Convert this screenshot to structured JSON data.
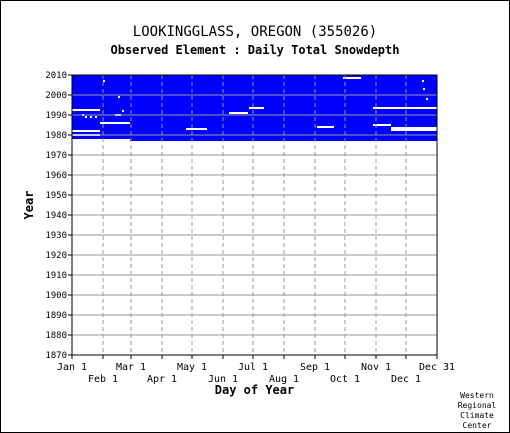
{
  "title": "LOOKINGGLASS, OREGON   (355026)",
  "subtitle": "Observed Element : Daily Total Snowdepth",
  "credit": [
    "Western",
    "Regional",
    "Climate",
    "Center"
  ],
  "colors": {
    "data": "#0000ff",
    "grid": "#999999",
    "axis": "#000000",
    "gap": "#ffffff"
  },
  "chart_data": {
    "type": "heatmap",
    "xlabel": "Day of Year",
    "ylabel": "Year",
    "xlim": [
      1,
      366
    ],
    "ylim": [
      1870,
      2010
    ],
    "y_ticks": [
      1870,
      1880,
      1890,
      1900,
      1910,
      1920,
      1930,
      1940,
      1950,
      1960,
      1970,
      1980,
      1990,
      2000,
      2010
    ],
    "x_ticks_top": [
      {
        "label": "Jan 1",
        "day": 1
      },
      {
        "label": "Mar 1",
        "day": 60
      },
      {
        "label": "May 1",
        "day": 121
      },
      {
        "label": "Jul 1",
        "day": 182
      },
      {
        "label": "Sep 1",
        "day": 244
      },
      {
        "label": "Nov 1",
        "day": 305
      },
      {
        "label": "Dec 31",
        "day": 366
      }
    ],
    "x_ticks_bottom": [
      {
        "label": "Feb 1",
        "day": 32
      },
      {
        "label": "Apr 1",
        "day": 91
      },
      {
        "label": "Jun 1",
        "day": 152
      },
      {
        "label": "Aug 1",
        "day": 213
      },
      {
        "label": "Oct 1",
        "day": 274
      },
      {
        "label": "Dec 1",
        "day": 335
      }
    ],
    "grid": true,
    "data_blocks": [
      {
        "name": "early-record",
        "day_start": 1,
        "day_end": 59,
        "year_start": 1978,
        "year_end": 2010
      },
      {
        "name": "full-record",
        "day_start": 59,
        "day_end": 366,
        "year_start": 1977,
        "year_end": 2010
      }
    ],
    "missing_gaps": [
      {
        "day_start": 1,
        "day_end": 29,
        "year": 1992.5
      },
      {
        "day_start": 1,
        "day_end": 29,
        "year": 1982
      },
      {
        "day_start": 1,
        "day_end": 29,
        "year": 1980
      },
      {
        "day_start": 29,
        "day_end": 59,
        "year": 1986
      },
      {
        "day_start": 115,
        "day_end": 136,
        "year": 1983
      },
      {
        "day_start": 158,
        "day_end": 177,
        "year": 1991
      },
      {
        "day_start": 178,
        "day_end": 193,
        "year": 1993.5
      },
      {
        "day_start": 246,
        "day_end": 263,
        "year": 1984
      },
      {
        "day_start": 272,
        "day_end": 290,
        "year": 2008.5
      },
      {
        "day_start": 302,
        "day_end": 366,
        "year": 1993.5
      },
      {
        "day_start": 302,
        "day_end": 320,
        "year": 1985
      },
      {
        "day_start": 320,
        "day_end": 366,
        "year": 1983.5
      },
      {
        "day_start": 320,
        "day_end": 366,
        "year": 1982.5
      }
    ],
    "missing_points": [
      {
        "day": 15,
        "year": 1989
      },
      {
        "day": 20,
        "year": 1989
      },
      {
        "day": 25,
        "year": 1989
      },
      {
        "day": 12,
        "year": 1990
      },
      {
        "day": 45,
        "year": 1990
      },
      {
        "day": 47,
        "year": 1990
      },
      {
        "day": 49,
        "year": 1990
      },
      {
        "day": 52,
        "year": 1992
      },
      {
        "day": 48,
        "year": 1999
      },
      {
        "day": 33,
        "year": 2007
      },
      {
        "day": 352,
        "year": 2007
      },
      {
        "day": 353,
        "year": 2003
      },
      {
        "day": 356,
        "year": 1998
      }
    ]
  }
}
